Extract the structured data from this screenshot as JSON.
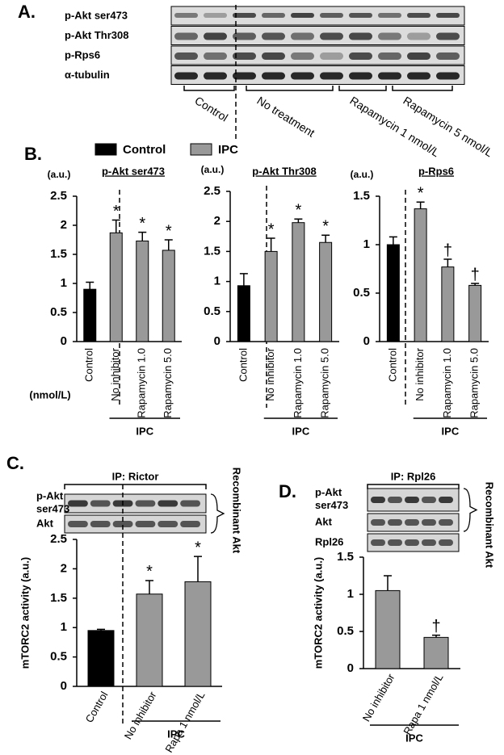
{
  "panel_A": {
    "label": "A.",
    "rows": [
      "p-Akt ser473",
      "p-Akt Thr308",
      "p-Rps6",
      "α-tubulin"
    ],
    "groups": [
      "Control",
      "No treatment",
      "Rapamycin 1 nmol/L",
      "Rapamycin 5 nmol/L"
    ]
  },
  "panel_B": {
    "label": "B."
  },
  "panel_C": {
    "label": "C.",
    "ip": "IP: Rictor",
    "rows": [
      "p-Akt ser473",
      "Akt"
    ],
    "side": "Recombinant Akt"
  },
  "panel_D": {
    "label": "D.",
    "ip": "IP: Rpl26",
    "rows": [
      "p-Akt ser473",
      "Akt",
      "Rpl26"
    ],
    "side": "Recombinant Akt"
  },
  "chart_data": [
    {
      "type": "bar",
      "title": "p-Akt ser473",
      "ylabel": "(a.u.)",
      "unit_label": "(nmol/L)",
      "group_label": "IPC",
      "legend": [
        {
          "name": "Control",
          "color": "#000000"
        },
        {
          "name": "IPC",
          "color": "#999999"
        }
      ],
      "categories": [
        "Control",
        "No inhibitor",
        "Rapamycin 1.0",
        "Rapamycin 5.0"
      ],
      "values": [
        0.9,
        1.87,
        1.73,
        1.57
      ],
      "errors": [
        0.12,
        0.22,
        0.15,
        0.18
      ],
      "colors": [
        "#000000",
        "#999999",
        "#999999",
        "#999999"
      ],
      "annotations": [
        null,
        "*",
        "*",
        "*"
      ],
      "ylim": [
        0,
        2.5
      ],
      "yticks": [
        0,
        0.5,
        1,
        1.5,
        2,
        2.5
      ]
    },
    {
      "type": "bar",
      "title": "p-Akt Thr308",
      "ylabel": "(a.u.)",
      "group_label": "IPC",
      "categories": [
        "Control",
        "No inhibitor",
        "Rapamycin 1.0",
        "Rapamycin 5.0"
      ],
      "values": [
        0.93,
        1.5,
        1.98,
        1.65
      ],
      "errors": [
        0.2,
        0.22,
        0.06,
        0.12
      ],
      "colors": [
        "#000000",
        "#999999",
        "#999999",
        "#999999"
      ],
      "annotations": [
        null,
        "*",
        "*",
        "*"
      ],
      "ylim": [
        0,
        2.5
      ],
      "yticks": [
        0,
        0.5,
        1,
        1.5,
        2,
        2.5
      ]
    },
    {
      "type": "bar",
      "title": "p-Rps6",
      "ylabel": "(a.u.)",
      "group_label": "IPC",
      "categories": [
        "Control",
        "No inhibitor",
        "Rapamycin 1.0",
        "Rapamycin 5.0"
      ],
      "values": [
        1.0,
        1.37,
        0.77,
        0.58
      ],
      "errors": [
        0.08,
        0.07,
        0.08,
        0.02
      ],
      "colors": [
        "#000000",
        "#999999",
        "#999999",
        "#999999"
      ],
      "annotations": [
        null,
        "*",
        "†",
        "†"
      ],
      "ylim": [
        0,
        1.5
      ],
      "yticks": [
        0,
        0.5,
        1,
        1.5
      ]
    },
    {
      "type": "bar",
      "ylabel": "mTORC2 activity (a.u.)",
      "group_label": "IPC",
      "categories": [
        "Control",
        "No inhibitor",
        "Rapa 1 nmol/L"
      ],
      "values": [
        0.95,
        1.57,
        1.78
      ],
      "errors": [
        0.02,
        0.23,
        0.43
      ],
      "colors": [
        "#000000",
        "#999999",
        "#999999"
      ],
      "annotations": [
        null,
        "*",
        "*"
      ],
      "ylim": [
        0,
        2.5
      ],
      "yticks": [
        0,
        0.5,
        1,
        1.5,
        2,
        2.5
      ]
    },
    {
      "type": "bar",
      "ylabel": "mTORC2 activity (a.u.)",
      "group_label": "IPC",
      "categories": [
        "No inhibitor",
        "Rapa 1 nmol/L"
      ],
      "values": [
        1.05,
        0.42
      ],
      "errors": [
        0.2,
        0.03
      ],
      "colors": [
        "#999999",
        "#999999"
      ],
      "annotations": [
        null,
        "†"
      ],
      "ylim": [
        0,
        1.5
      ],
      "yticks": [
        0,
        0.5,
        1,
        1.5
      ]
    }
  ]
}
